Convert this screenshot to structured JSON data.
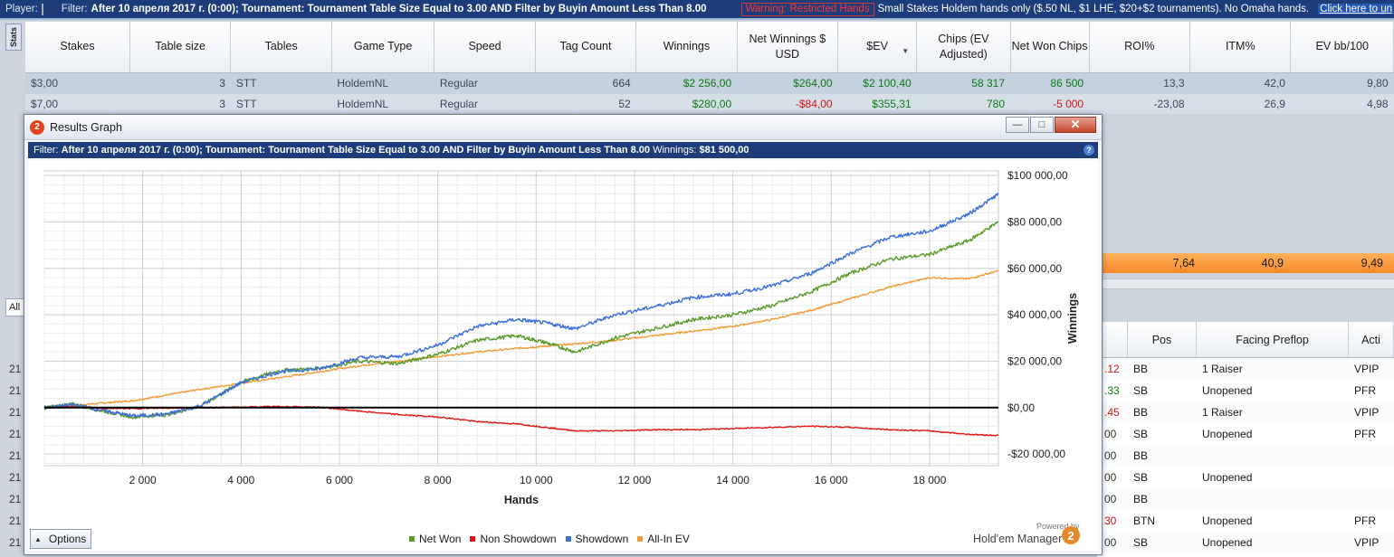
{
  "topbar": {
    "player_label": "Player:",
    "filter_label": "Filter:",
    "filter_text": "After 10 апреля 2017 г. (0:00); Tournament: Tournament Table Size Equal to 3.00 AND Filter by Buyin Amount Less Than 8.00",
    "warning_text": "Warning: Restricted Hands",
    "notice_text": "Small Stakes Holdem hands only ($.50 NL, $1 LHE, $20+$2 tournaments).  No Omaha hands.",
    "link_text": "Click here to un"
  },
  "side_tab": "Stats",
  "stats_table": {
    "columns": [
      "Stakes",
      "Table size",
      "Tables",
      "Game Type",
      "Speed",
      "Tag Count",
      "Winnings",
      "Net Winnings $ USD",
      "$EV",
      "Chips (EV Adjusted)",
      "Net Won Chips",
      "ROI%",
      "ITM%",
      "EV bb/100"
    ],
    "rows": [
      [
        "$3,00",
        "3",
        "STT",
        "HoldemNL",
        "Regular",
        "664",
        "$2 256,00",
        "$264,00",
        "$2 100,40",
        "58 317",
        "86 500",
        "13,3",
        "42,0",
        "9,80"
      ],
      [
        "$7,00",
        "3",
        "STT",
        "HoldemNL",
        "Regular",
        "52",
        "$280,00",
        "-$84,00",
        "$355,31",
        "780",
        "-5 000",
        "-23,08",
        "26,9",
        "4,98"
      ]
    ]
  },
  "summary": {
    "roi": "7,64",
    "itm": "40,9",
    "ev_bb": "9,49"
  },
  "left_all": "All",
  "left_nums": [
    "21",
    "21",
    "21",
    "21",
    "21",
    "21",
    "21",
    "21",
    "21"
  ],
  "hands_table": {
    "columns": [
      "",
      "Pos",
      "Facing Preflop",
      "Acti"
    ],
    "rows": [
      [
        ".12",
        "BB",
        "1 Raiser",
        "VPIP"
      ],
      [
        ".33",
        "SB",
        "Unopened",
        "PFR"
      ],
      [
        ".45",
        "BB",
        "1 Raiser",
        "VPIP"
      ],
      [
        "00",
        "SB",
        "Unopened",
        "PFR"
      ],
      [
        "00",
        "BB",
        "",
        ""
      ],
      [
        "00",
        "SB",
        "Unopened",
        ""
      ],
      [
        "00",
        "BB",
        "",
        ""
      ],
      [
        "30",
        "BTN",
        "Unopened",
        "PFR"
      ],
      [
        "00",
        "SB",
        "Unopened",
        "VPIP"
      ]
    ],
    "first_col_colors": [
      "#d11313",
      "#0a7a12",
      "#d11313",
      "#333333",
      "#333333",
      "#333333",
      "#333333",
      "#d11313",
      "#333333"
    ]
  },
  "window": {
    "title": "Results Graph",
    "app_icon": "2",
    "filter_label": "Filter:",
    "filter_text": "After 10 апреля 2017 г. (0:00); Tournament: Tournament Table Size Equal to 3.00 AND Filter by Buyin Amount Less Than 8.00",
    "winnings_label": "Winnings:",
    "winnings_value": "$81 500,00",
    "options_label": "Options",
    "powered_by": "Powered by",
    "brand": "Hold'em Manager",
    "brand_logo": "2"
  },
  "chart_data": {
    "type": "line",
    "xlabel": "Hands",
    "ylabel": "Winnings",
    "xlim": [
      0,
      19400
    ],
    "ylim": [
      -25000,
      102000
    ],
    "x_ticks": [
      2000,
      4000,
      6000,
      8000,
      10000,
      12000,
      14000,
      16000,
      18000
    ],
    "x_tick_labels": [
      "2 000",
      "4 000",
      "6 000",
      "8 000",
      "10 000",
      "12 000",
      "14 000",
      "16 000",
      "18 000"
    ],
    "y_ticks": [
      100000,
      80000,
      60000,
      40000,
      20000,
      0,
      -20000
    ],
    "y_tick_labels": [
      "$100 000,00",
      "$80 000,00",
      "$60 000,00",
      "$40 000,00",
      "$20 000,00",
      "$0,00",
      "-$20 000,00"
    ],
    "grid": true,
    "legend_position": "bottom",
    "x": [
      0,
      600,
      1200,
      1800,
      2500,
      3200,
      4000,
      4800,
      5600,
      6400,
      7200,
      8000,
      8800,
      9600,
      10200,
      10800,
      11600,
      12400,
      13200,
      14000,
      14800,
      15600,
      16400,
      17200,
      18000,
      18800,
      19400
    ],
    "series": [
      {
        "name": "Net Won",
        "color": "#5a9a2a",
        "values": [
          0,
          1500,
          -1500,
          -4000,
          -3000,
          1000,
          11000,
          16000,
          17000,
          20000,
          19000,
          23000,
          29000,
          31000,
          28000,
          24000,
          30000,
          34000,
          38000,
          40000,
          44000,
          50000,
          58000,
          64000,
          66000,
          72000,
          80000
        ]
      },
      {
        "name": "Non Showdown",
        "color": "#e01616",
        "values": [
          0,
          300,
          -300,
          -400,
          -200,
          0,
          200,
          500,
          200,
          -1500,
          -3000,
          -4000,
          -6000,
          -7000,
          -8500,
          -10000,
          -10000,
          -9500,
          -9500,
          -9000,
          -8500,
          -8000,
          -8500,
          -9500,
          -10000,
          -11500,
          -12000
        ]
      },
      {
        "name": "Showdown",
        "color": "#3d6fdc",
        "values": [
          0,
          1200,
          -1200,
          -3600,
          -2800,
          1000,
          10800,
          15500,
          16800,
          21500,
          22000,
          27000,
          35000,
          38000,
          36500,
          34000,
          40000,
          43500,
          47500,
          49000,
          52500,
          58000,
          66500,
          73500,
          76000,
          83500,
          92000
        ]
      },
      {
        "name": "All-In EV",
        "color": "#f29a36",
        "values": [
          0,
          1000,
          2000,
          3000,
          5500,
          8000,
          10500,
          13000,
          15500,
          18000,
          20000,
          22000,
          24000,
          25500,
          26500,
          27500,
          29000,
          31000,
          33000,
          35000,
          38000,
          42000,
          47000,
          52000,
          56000,
          55500,
          59000
        ]
      },
      {
        "name": "",
        "color": "#000000",
        "values": [
          0,
          0,
          0,
          0,
          0,
          0,
          0,
          0,
          0,
          0,
          0,
          0,
          0,
          0,
          0,
          0,
          0,
          0,
          0,
          0,
          0,
          0,
          0,
          0,
          0,
          0,
          0
        ]
      }
    ]
  }
}
